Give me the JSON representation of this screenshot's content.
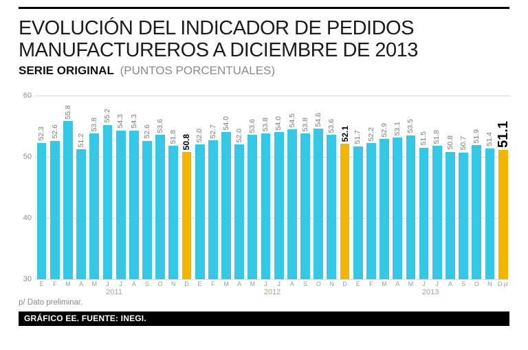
{
  "header": {
    "title_line1": "EVOLUCIÓN DEL INDICADOR DE PEDIDOS",
    "title_line2": "MANUFACTUREROS A DICIEMBRE DE 2013",
    "subtitle_bold": "SERIE ORIGINAL",
    "subtitle_units": "(PUNTOS PORCENTUALES)"
  },
  "footer": {
    "footnote": "p/ Dato preliminar.",
    "credit": "GRÁFICO EE. FUENTE: INEGI."
  },
  "colors": {
    "bar": "#35c7e6",
    "bar_highlight": "#f2b600",
    "value_label": "#7b7b7b",
    "highlight_label": "#000000",
    "grid": "#d8d8d8",
    "axis_text": "#8c8c8c",
    "year_text": "#ab9e8c",
    "credit_bg": "#000000",
    "credit_text": "#ffffff"
  },
  "chart_data": {
    "type": "bar",
    "title": "EVOLUCIÓN DEL INDICADOR DE PEDIDOS MANUFACTUREROS A DICIEMBRE DE 2013",
    "subtitle": "SERIE ORIGINAL (PUNTOS PORCENTUALES)",
    "ylim": [
      30,
      60
    ],
    "yticks": [
      60,
      50,
      40,
      30
    ],
    "grid": true,
    "preliminary_suffix": "p/",
    "groups": [
      {
        "year": "2011",
        "months": [
          "E",
          "F",
          "M",
          "A",
          "M",
          "J",
          "J",
          "A",
          "S",
          "O",
          "N",
          "D"
        ],
        "values": [
          52.3,
          52.6,
          55.8,
          51.2,
          53.8,
          55.2,
          54.3,
          54.3,
          52.6,
          53.6,
          51.8,
          50.8
        ],
        "highlight_index": 11
      },
      {
        "year": "2012",
        "months": [
          "E",
          "F",
          "M",
          "A",
          "M",
          "J",
          "J",
          "A",
          "S",
          "O",
          "N",
          "D"
        ],
        "values": [
          52.0,
          52.7,
          54.0,
          52.0,
          53.6,
          53.8,
          54.0,
          54.5,
          53.8,
          54.6,
          53.6,
          52.1
        ],
        "highlight_index": 11
      },
      {
        "year": "2013",
        "months": [
          "E",
          "F",
          "M",
          "A",
          "M",
          "J",
          "J",
          "A",
          "S",
          "O",
          "N",
          "D"
        ],
        "values": [
          51.7,
          52.2,
          52.9,
          53.1,
          53.5,
          51.5,
          51.8,
          50.8,
          50.7,
          51.9,
          51.4,
          51.1
        ],
        "highlight_index": 11
      }
    ]
  }
}
